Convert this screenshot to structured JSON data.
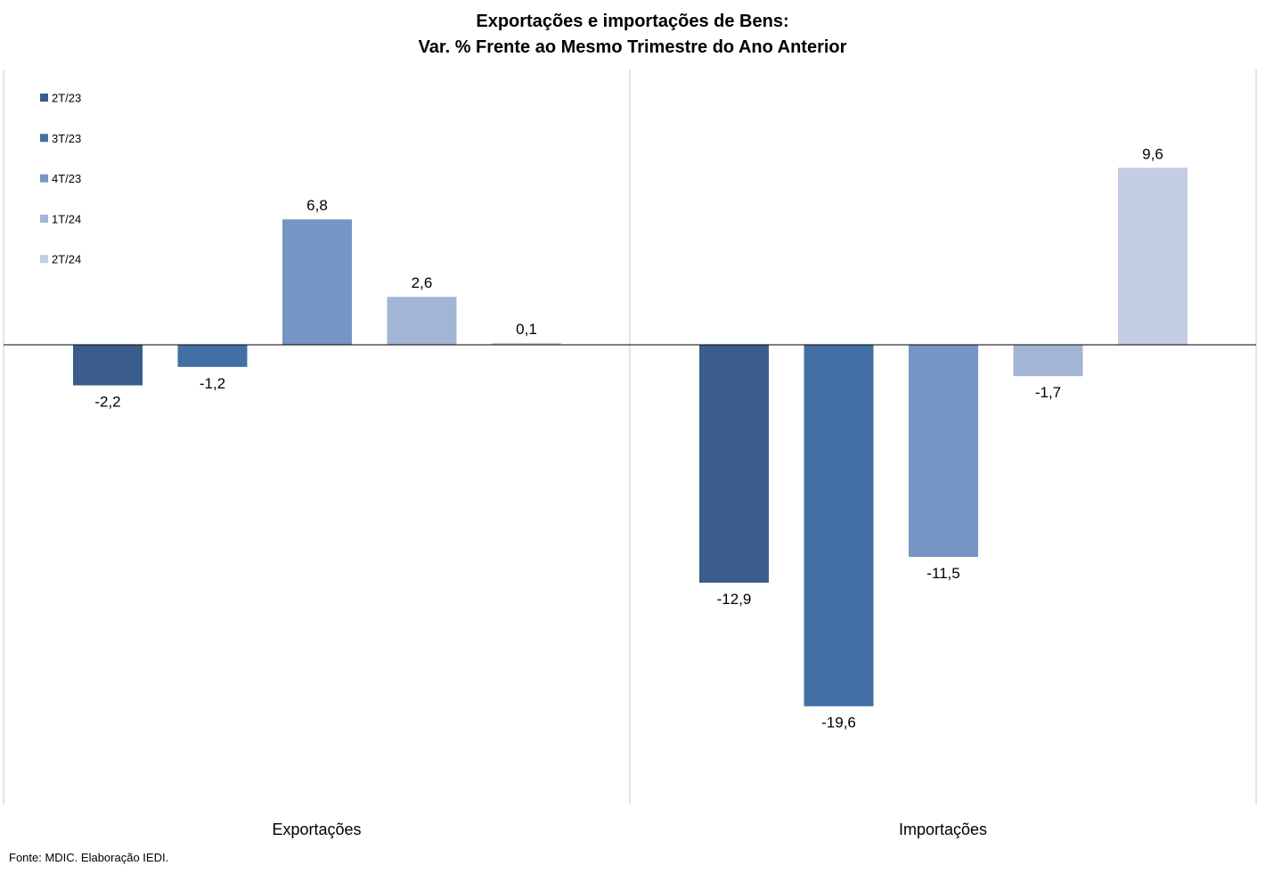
{
  "chart_data": {
    "type": "bar",
    "title": "Exportações e importações de Bens:",
    "subtitle": "Var. % Frente ao Mesmo Trimestre do Ano Anterior",
    "categories": [
      "Exportações",
      "Importações"
    ],
    "series": [
      {
        "name": "2T/23",
        "color": "#3a5d8b",
        "values": [
          -2.2,
          -12.9
        ],
        "labels": [
          "-2,2",
          "-12,9"
        ]
      },
      {
        "name": "3T/23",
        "color": "#4270a4",
        "values": [
          -1.2,
          -19.6
        ],
        "labels": [
          "-1,2",
          "-19,6"
        ]
      },
      {
        "name": "4T/23",
        "color": "#7595c5",
        "values": [
          6.8,
          -11.5
        ],
        "labels": [
          "6,8",
          "-11,5"
        ]
      },
      {
        "name": "1T/24",
        "color": "#a3b5d7",
        "values": [
          2.6,
          -1.7
        ],
        "labels": [
          "2,6",
          "-1,7"
        ]
      },
      {
        "name": "2T/24",
        "color": "#c3cde3",
        "values": [
          0.1,
          9.6
        ],
        "labels": [
          "0,1",
          "9,6"
        ]
      }
    ],
    "ylim": [
      -25.5,
      15
    ],
    "legend_position": "top-left",
    "grid": false
  },
  "source": "Fonte: MDIC. Elaboração IEDI."
}
